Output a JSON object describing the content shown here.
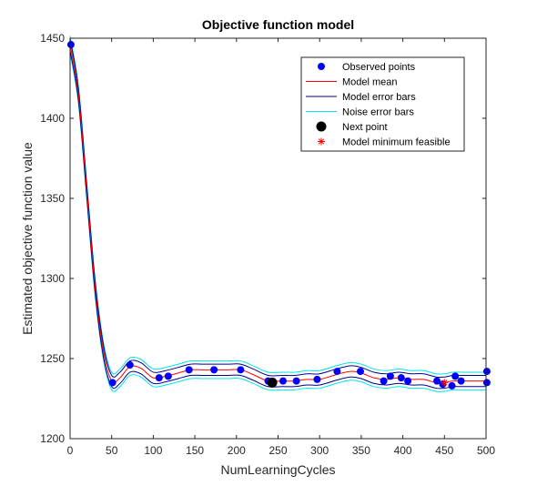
{
  "chart_data": {
    "type": "line",
    "title": "Objective function model",
    "xlabel": "NumLearningCycles",
    "ylabel": "Estimated objective function value",
    "xlim": [
      0,
      500
    ],
    "ylim": [
      1200,
      1450
    ],
    "xticks": [
      0,
      50,
      100,
      150,
      200,
      250,
      300,
      350,
      400,
      450,
      500
    ],
    "yticks": [
      1200,
      1250,
      1300,
      1350,
      1400,
      1450
    ],
    "grid": false,
    "legend_placement": "top-right",
    "legend": [
      {
        "label": "Observed points",
        "marker": "dot",
        "color": "#0000ff"
      },
      {
        "label": "Model mean",
        "marker": "line",
        "color": "#ff0000"
      },
      {
        "label": "Model error bars",
        "marker": "line",
        "color": "#00008b"
      },
      {
        "label": "Noise error bars",
        "marker": "line",
        "color": "#00e5e5"
      },
      {
        "label": "Next point",
        "marker": "big-dot",
        "color": "#000000"
      },
      {
        "label": "Model minimum feasible",
        "marker": "star",
        "color": "#ff0000"
      }
    ],
    "observed_points": {
      "x": [
        1,
        51,
        72,
        107,
        118,
        143,
        173,
        205,
        238,
        256,
        272,
        297,
        321,
        349,
        377,
        385,
        398,
        406,
        441,
        448,
        459,
        463,
        470,
        501,
        501
      ],
      "y": [
        1446,
        1235,
        1246,
        1238,
        1239,
        1243,
        1243,
        1243,
        1236,
        1236,
        1236,
        1237,
        1242,
        1242,
        1236,
        1239,
        1238,
        1236,
        1236,
        1234,
        1233,
        1239,
        1236,
        1235,
        1242
      ]
    },
    "model_mean": {
      "x": [
        0,
        10,
        20,
        30,
        40,
        50,
        60,
        72,
        85,
        100,
        115,
        130,
        145,
        160,
        175,
        190,
        205,
        220,
        238,
        255,
        270,
        285,
        300,
        320,
        337,
        350,
        365,
        380,
        395,
        410,
        425,
        440,
        450,
        460,
        470,
        485,
        500
      ],
      "y": [
        1446,
        1415,
        1355,
        1295,
        1255,
        1236,
        1238,
        1245,
        1244,
        1238,
        1239,
        1241,
        1243,
        1243,
        1243,
        1243,
        1243,
        1240,
        1236,
        1236,
        1236,
        1237,
        1237,
        1240,
        1242,
        1241,
        1238,
        1237,
        1238,
        1237,
        1237,
        1235,
        1235,
        1236,
        1236,
        1236,
        1236
      ]
    },
    "model_error_band": 3.5,
    "noise_error_band": 5.5,
    "next_point": {
      "x": 243,
      "y": 1235
    },
    "model_minimum_feasible": {
      "x": 450,
      "y": 1235
    }
  }
}
